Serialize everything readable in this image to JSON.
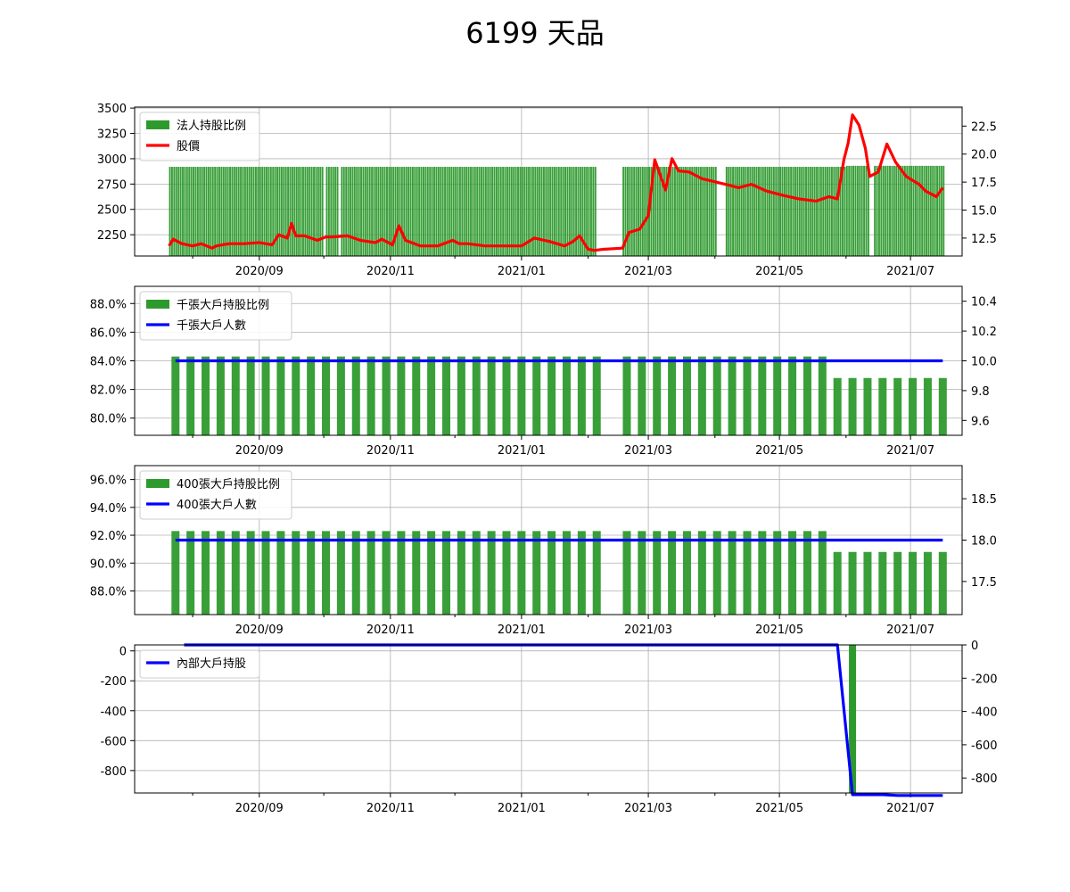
{
  "title": "6199 天品",
  "colors": {
    "bar": "#2e9a2e",
    "price": "#ff0000",
    "holders": "#0000ff",
    "grid": "#b0b0b0"
  },
  "x_axis": {
    "ticks": [
      "2020/09",
      "2020/11",
      "2021/01",
      "2021/03",
      "2021/05",
      "2021/07"
    ],
    "tick_dates": [
      "2020-09-01",
      "2020-11-01",
      "2021-01-01",
      "2021-03-01",
      "2021-05-01",
      "2021-07-01"
    ],
    "range": [
      "2020-07-05",
      "2021-07-25"
    ]
  },
  "chart_data": [
    {
      "type": "bar",
      "legend": [
        "法人持股比例",
        "股價"
      ],
      "legend_position": "top-left",
      "grid": true,
      "left_ylim": [
        2040,
        3510
      ],
      "left_ticks": [
        "2250",
        "2500",
        "2750",
        "3000",
        "3250",
        "3500"
      ],
      "right_ylim": [
        10.9,
        24.2
      ],
      "right_ticks": [
        "12.5",
        "15.0",
        "17.5",
        "20.0",
        "22.5"
      ],
      "bar_segments": [
        {
          "start": "2020-07-21",
          "end": "2020-09-30",
          "value": 2920
        },
        {
          "start": "2020-10-02",
          "end": "2020-10-07",
          "value": 2920
        },
        {
          "start": "2020-10-09",
          "end": "2021-02-04",
          "value": 2920
        },
        {
          "start": "2021-02-17",
          "end": "2021-04-01",
          "value": 2920
        },
        {
          "start": "2021-04-06",
          "end": "2021-05-31",
          "value": 2920
        },
        {
          "start": "2021-06-01",
          "end": "2021-06-11",
          "value": 2930
        },
        {
          "start": "2021-06-14",
          "end": "2021-07-16",
          "value": 2930
        }
      ],
      "price": {
        "dates": [
          "2020-07-21",
          "2020-07-23",
          "2020-07-27",
          "2020-08-01",
          "2020-08-05",
          "2020-08-10",
          "2020-08-12",
          "2020-08-18",
          "2020-08-25",
          "2020-09-01",
          "2020-09-07",
          "2020-09-10",
          "2020-09-14",
          "2020-09-16",
          "2020-09-18",
          "2020-09-22",
          "2020-09-28",
          "2020-10-02",
          "2020-10-05",
          "2020-10-12",
          "2020-10-18",
          "2020-10-25",
          "2020-10-28",
          "2020-11-02",
          "2020-11-05",
          "2020-11-08",
          "2020-11-15",
          "2020-11-23",
          "2020-11-30",
          "2020-12-03",
          "2020-12-07",
          "2020-12-15",
          "2020-12-25",
          "2021-01-01",
          "2021-01-07",
          "2021-01-14",
          "2021-01-21",
          "2021-01-25",
          "2021-01-28",
          "2021-02-01",
          "2021-02-04",
          "2021-02-08",
          "2021-02-17",
          "2021-02-20",
          "2021-02-25",
          "2021-03-01",
          "2021-03-04",
          "2021-03-09",
          "2021-03-12",
          "2021-03-15",
          "2021-03-20",
          "2021-03-26",
          "2021-04-06",
          "2021-04-12",
          "2021-04-18",
          "2021-04-25",
          "2021-05-03",
          "2021-05-10",
          "2021-05-18",
          "2021-05-24",
          "2021-05-28",
          "2021-05-31",
          "2021-06-02",
          "2021-06-04",
          "2021-06-07",
          "2021-06-10",
          "2021-06-12",
          "2021-06-16",
          "2021-06-20",
          "2021-06-24",
          "2021-06-29",
          "2021-07-05",
          "2021-07-08",
          "2021-07-13",
          "2021-07-16"
        ],
        "values": [
          11.8,
          12.4,
          12.0,
          11.8,
          12.0,
          11.6,
          11.8,
          12.0,
          12.0,
          12.1,
          11.9,
          12.8,
          12.5,
          13.8,
          12.7,
          12.7,
          12.3,
          12.6,
          12.6,
          12.7,
          12.3,
          12.1,
          12.4,
          11.9,
          13.6,
          12.3,
          11.8,
          11.8,
          12.3,
          12.0,
          12.0,
          11.8,
          11.8,
          11.8,
          12.5,
          12.2,
          11.8,
          12.2,
          12.7,
          11.5,
          11.4,
          11.5,
          11.6,
          13.0,
          13.3,
          14.5,
          19.5,
          16.8,
          19.6,
          18.5,
          18.4,
          17.8,
          17.3,
          17.0,
          17.3,
          16.7,
          16.3,
          16.0,
          15.8,
          16.2,
          16.0,
          19.5,
          21.0,
          23.5,
          22.6,
          20.5,
          18.0,
          18.4,
          20.9,
          19.3,
          18.0,
          17.3,
          16.7,
          16.2,
          17.0
        ]
      }
    },
    {
      "type": "bar",
      "legend": [
        "千張大戶持股比例",
        "千張大戶人數"
      ],
      "legend_position": "top-left",
      "grid": true,
      "left_ylim": [
        78.8,
        89.2
      ],
      "left_ticks": [
        "80.0%",
        "82.0%",
        "84.0%",
        "86.0%",
        "88.0%"
      ],
      "right_ylim": [
        9.5,
        10.5
      ],
      "right_ticks": [
        "9.6",
        "9.8",
        "10.0",
        "10.2",
        "10.4"
      ],
      "weekly_bars": [
        84.3,
        84.3,
        84.3,
        84.3,
        84.3,
        84.3,
        84.3,
        84.3,
        84.3,
        84.3,
        84.3,
        84.3,
        84.3,
        84.3,
        84.3,
        84.3,
        84.3,
        84.3,
        84.3,
        84.3,
        84.3,
        84.3,
        84.3,
        84.3,
        84.3,
        84.3,
        84.3,
        84.3,
        84.3,
        84.3,
        84.3,
        84.3,
        84.3,
        84.3,
        84.3,
        84.3,
        84.3,
        84.3,
        84.3,
        84.3,
        84.3,
        84.3,
        84.3,
        82.8,
        82.8,
        82.8,
        82.8,
        82.8,
        82.8,
        82.8,
        82.8
      ],
      "line_value": 10.0
    },
    {
      "type": "bar",
      "legend": [
        "400張大戶持股比例",
        "400張大戶人數"
      ],
      "legend_position": "top-left",
      "grid": true,
      "left_ylim": [
        86.3,
        97.0
      ],
      "left_ticks": [
        "88.0%",
        "90.0%",
        "92.0%",
        "94.0%",
        "96.0%"
      ],
      "right_ylim": [
        17.1,
        18.9
      ],
      "right_ticks": [
        "17.5",
        "18.0",
        "18.5"
      ],
      "weekly_bars": [
        92.3,
        92.3,
        92.3,
        92.3,
        92.3,
        92.3,
        92.3,
        92.3,
        92.3,
        92.3,
        92.3,
        92.3,
        92.3,
        92.3,
        92.3,
        92.3,
        92.3,
        92.3,
        92.3,
        92.3,
        92.3,
        92.3,
        92.3,
        92.3,
        92.3,
        92.3,
        92.3,
        92.3,
        92.3,
        92.3,
        92.3,
        92.3,
        92.3,
        92.3,
        92.3,
        92.3,
        92.3,
        92.3,
        92.3,
        92.3,
        92.3,
        92.3,
        92.3,
        90.8,
        90.8,
        90.8,
        90.8,
        90.8,
        90.8,
        90.8,
        90.8
      ],
      "line_value": 18.0
    },
    {
      "type": "line",
      "legend": [
        "內部大戶持股"
      ],
      "legend_position": "top-left",
      "grid": true,
      "left_ylim": [
        -950,
        40
      ],
      "left_ticks": [
        "-800",
        "-600",
        "-400",
        "-200",
        "0"
      ],
      "right_ylim": [
        -890,
        0
      ],
      "right_ticks": [
        "-800",
        "-600",
        "-400",
        "-200",
        "0"
      ],
      "line": {
        "dates": [
          "2020-07-28",
          "2021-05-28",
          "2021-06-04",
          "2021-06-18",
          "2021-06-25",
          "2021-07-16"
        ],
        "values": [
          0,
          0,
          -900,
          -900,
          -905,
          -905
        ]
      },
      "bars": [
        {
          "date": "2021-06-04",
          "value": -890
        },
        {
          "date": "2021-06-25",
          "value": -2
        }
      ]
    }
  ]
}
